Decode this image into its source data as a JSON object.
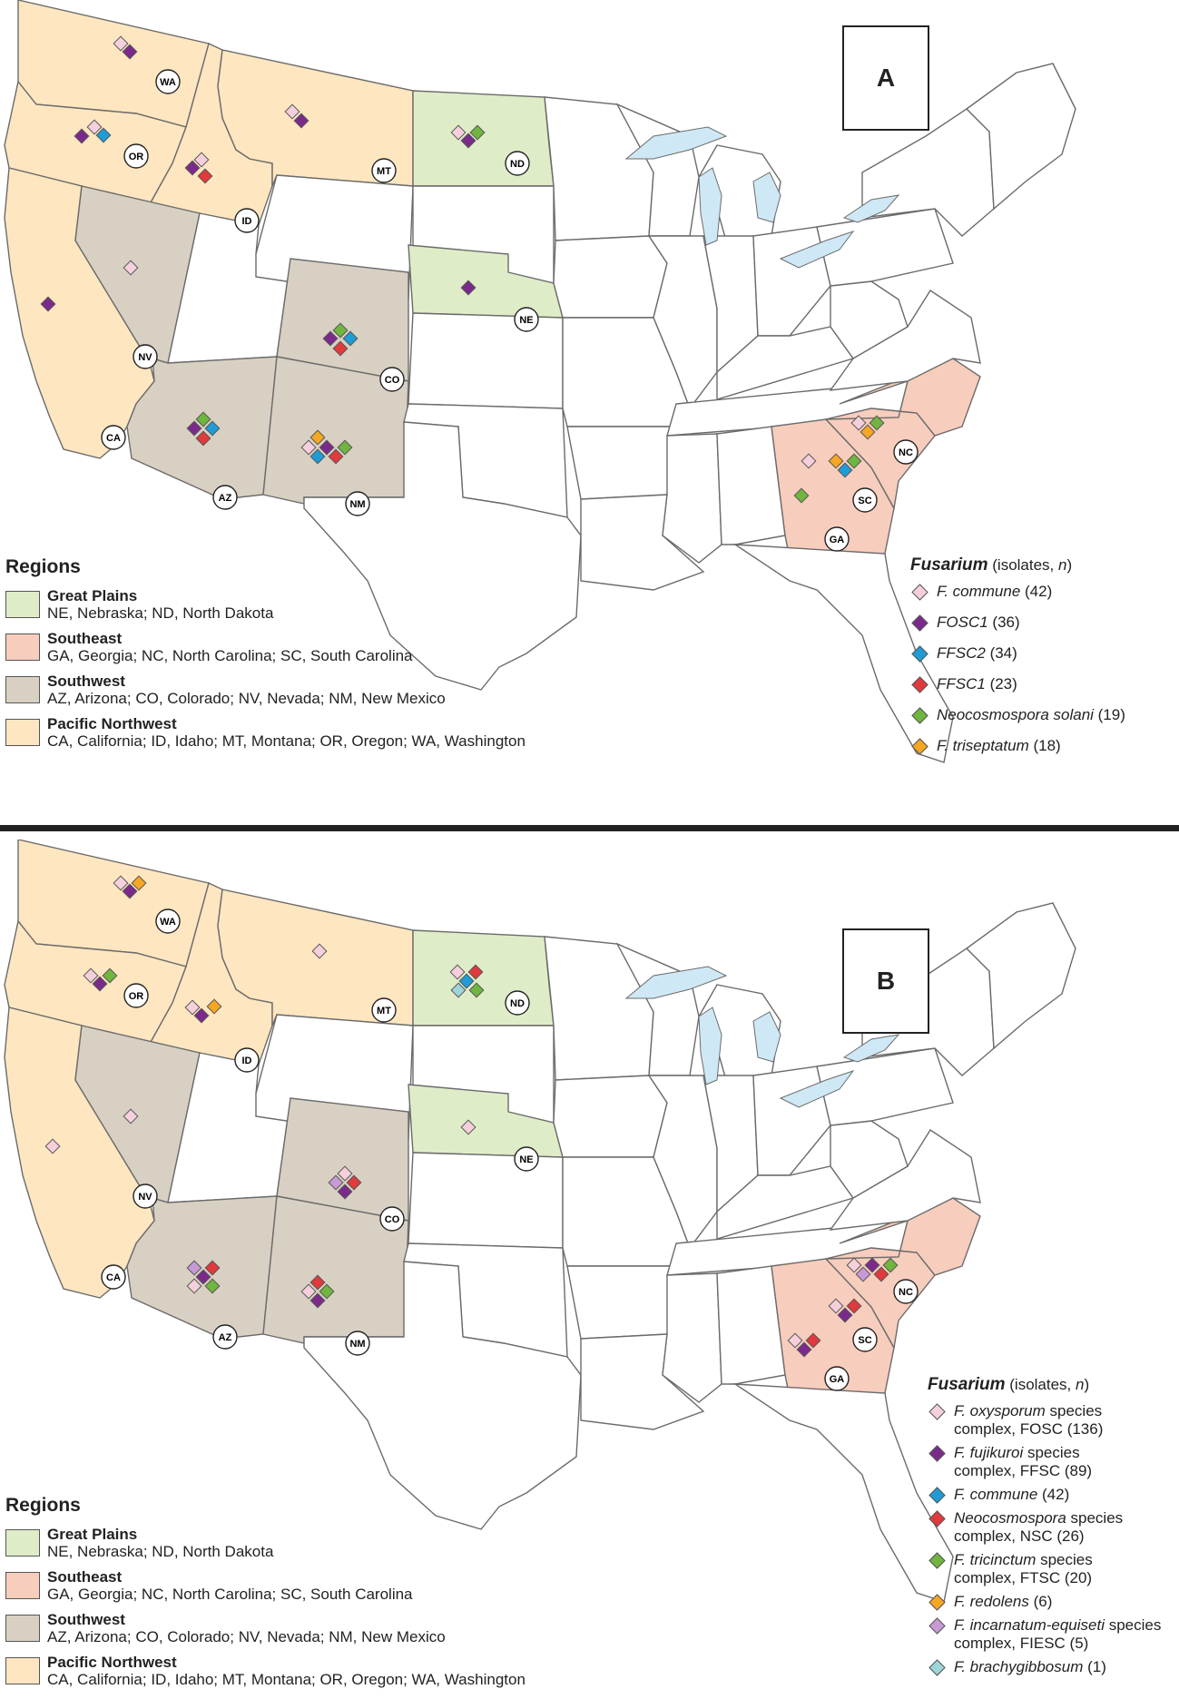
{
  "colors": {
    "great_plains": "#dfecc8",
    "southeast": "#f7cdbd",
    "southwest": "#d8d0c2",
    "pacific_northwest": "#fde6c0",
    "water": "#cfe8f5"
  },
  "panelA": {
    "letter": "A",
    "regions_title": "Regions",
    "regions": [
      {
        "name": "Great Plains",
        "desc": "NE, Nebraska; ND, North Dakota",
        "color": "#dfecc8"
      },
      {
        "name": "Southeast",
        "desc": "GA, Georgia; NC, North Carolina; SC, South Carolina",
        "color": "#f7cdbd"
      },
      {
        "name": "Southwest",
        "desc": "AZ, Arizona; CO, Colorado; NV, Nevada; NM, New Mexico",
        "color": "#d8d0c2"
      },
      {
        "name": "Pacific Northwest",
        "desc": "CA, California; ID, Idaho; MT, Montana; OR, Oregon; WA, Washington",
        "color": "#fde6c0"
      }
    ],
    "legend_title": "Fusarium",
    "legend_subtitle_pre": " (isolates, ",
    "legend_subtitle_n": "n",
    "legend_subtitle_post": ")",
    "legend": [
      {
        "name": "F. commune",
        "count": "(42)",
        "color": "#f5d0dc"
      },
      {
        "name": "FOSC1",
        "count": "(36)",
        "color": "#7b2a8c"
      },
      {
        "name": "FFSC2",
        "count": "(34)",
        "color": "#1f9bd6"
      },
      {
        "name": "FFSC1",
        "count": "(23)",
        "color": "#e03a3e"
      },
      {
        "name": "Neocosmospora solani",
        "count": "(19)",
        "color": "#6fb53f"
      },
      {
        "name": "F. triseptatum",
        "count": "(18)",
        "color": "#f5a623"
      }
    ],
    "state_labels": [
      "WA",
      "OR",
      "CA",
      "ID",
      "NV",
      "MT",
      "AZ",
      "CO",
      "NM",
      "ND",
      "NE",
      "NC",
      "SC",
      "GA"
    ]
  },
  "panelB": {
    "letter": "B",
    "regions_title": "Regions",
    "regions": [
      {
        "name": "Great Plains",
        "desc": "NE, Nebraska; ND, North Dakota",
        "color": "#dfecc8"
      },
      {
        "name": "Southeast",
        "desc": "GA, Georgia; NC, North Carolina; SC, South Carolina",
        "color": "#f7cdbd"
      },
      {
        "name": "Southwest",
        "desc": "AZ, Arizona; CO, Colorado; NV, Nevada; NM, New Mexico",
        "color": "#d8d0c2"
      },
      {
        "name": "Pacific Northwest",
        "desc": "CA, California; ID, Idaho; MT, Montana; OR, Oregon; WA, Washington",
        "color": "#fde6c0"
      }
    ],
    "legend_title": "Fusarium",
    "legend_subtitle_pre": " (isolates, ",
    "legend_subtitle_n": "n",
    "legend_subtitle_post": ")",
    "legend": [
      {
        "name": "F. oxysporum",
        "rest": " species",
        "line2": "complex, FOSC (136)",
        "color": "#f5d0dc"
      },
      {
        "name": "F. fujikuroi",
        "rest": " species",
        "line2": "complex, FFSC (89)",
        "color": "#7b2a8c"
      },
      {
        "name": "F. commune",
        "rest": " (42)",
        "line2": "",
        "color": "#1f9bd6"
      },
      {
        "name": "Neocosmospora",
        "rest": " species",
        "line2": "complex, NSC (26)",
        "color": "#e03a3e"
      },
      {
        "name": "F. tricinctum",
        "rest": " species",
        "line2": "complex, FTSC (20)",
        "color": "#6fb53f"
      },
      {
        "name": "F. redolens",
        "rest": " (6)",
        "line2": "",
        "color": "#f5a623"
      },
      {
        "name": "F. incarnatum-equiseti",
        "rest": " species",
        "line2": "complex, FIESC (5)",
        "color": "#c79ad6"
      },
      {
        "name": "F. brachygibbosum",
        "rest": " (1)",
        "line2": "",
        "color": "#9fd4d8"
      }
    ],
    "state_labels": [
      "WA",
      "OR",
      "CA",
      "ID",
      "NV",
      "MT",
      "AZ",
      "CO",
      "NM",
      "ND",
      "NE",
      "NC",
      "SC",
      "GA"
    ]
  }
}
